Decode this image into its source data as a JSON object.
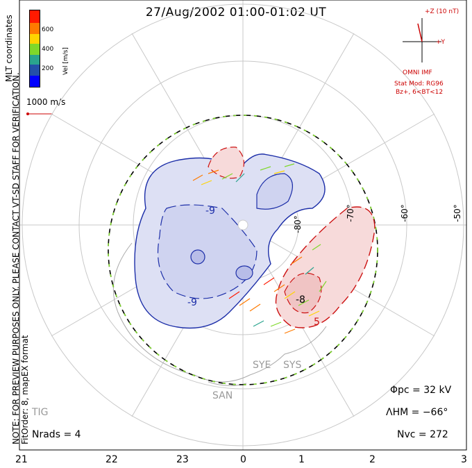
{
  "title": "27/Aug/2002 01:00-01:02 UT",
  "legend": {
    "label": "Vel [m/s]",
    "ticks": [
      "600",
      "400",
      "200"
    ],
    "colors": [
      "#ff0000",
      "#ff6a00",
      "#ffcf00",
      "#77dd22",
      "#2fbf6f",
      "#2468b8",
      "#0000ff"
    ]
  },
  "reference_vector": "1000 m/s",
  "side_note": "NOTE: FOR PREVIEW PURPOSES ONLY. PLEASE CONTACT VT-SD STAFF FOR VERIFICATION.",
  "fit_order": "FitOrder: 8, mapEX format",
  "coordinates_label": "MLT coordinates",
  "imf": {
    "z_label": "+Z (10 nT)",
    "y_label": "+Y",
    "source": "OMNI IMF",
    "model": "Stat Mod: RG96",
    "condition": "Bz+, 6<BT<12"
  },
  "stats": {
    "phi_pc": "Φpc = 32 kV",
    "lambda_hm": "ΛHM = −66°",
    "n_vc": "Nvc = 272",
    "n_rads": "Nrads = 4"
  },
  "lat_labels": [
    "-80°",
    "-70°",
    "-60°",
    "-50°"
  ],
  "mlt_ticks": [
    "21",
    "22",
    "23",
    "0",
    "1",
    "2",
    "3"
  ],
  "stations": [
    "SYE",
    "SYS",
    "SAN",
    "TIG"
  ],
  "contour_labels": [
    "-9",
    "-9",
    "5",
    "-8"
  ]
}
